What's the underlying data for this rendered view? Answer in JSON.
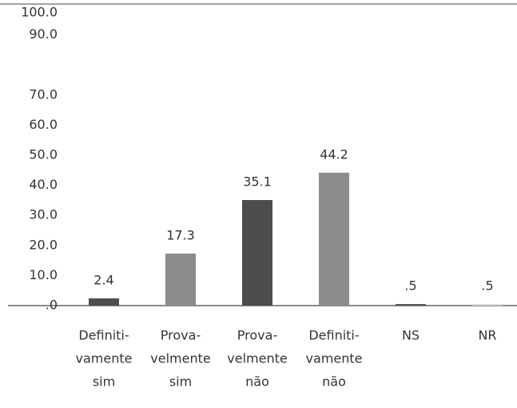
{
  "chart_data": {
    "type": "bar",
    "categories": [
      [
        "Definiti-",
        "vamente",
        "sim"
      ],
      [
        "Prova-",
        "velmente",
        "sim"
      ],
      [
        "Prova-",
        "velmente",
        "não"
      ],
      [
        "Definiti-",
        "vamente",
        "não"
      ],
      [
        "NS"
      ],
      [
        "NR"
      ]
    ],
    "values": [
      2.4,
      17.3,
      35.1,
      44.2,
      0.5,
      0.5
    ],
    "value_labels": [
      "2.4",
      "17.3",
      "35.1",
      "44.2",
      ".5",
      ".5"
    ],
    "colors": [
      "#4d4d4f",
      "#8c8c8e",
      "#4d4d4f",
      "#8c8c8e",
      "#4d4d4f",
      "#d9d9d9"
    ],
    "ylim": [
      0,
      100
    ],
    "yticks": [
      {
        "value": 100,
        "label": "100.0"
      },
      {
        "value": 90,
        "label": "90.0"
      },
      {
        "value": 70,
        "label": "70.0"
      },
      {
        "value": 60,
        "label": "60.0"
      },
      {
        "value": 50,
        "label": "50.0"
      },
      {
        "value": 40,
        "label": "40.0"
      },
      {
        "value": 30,
        "label": "30.0"
      },
      {
        "value": 20,
        "label": "20.0"
      },
      {
        "value": 10,
        "label": "10.0"
      },
      {
        "value": 0,
        "label": ".0"
      }
    ],
    "grid": false
  }
}
